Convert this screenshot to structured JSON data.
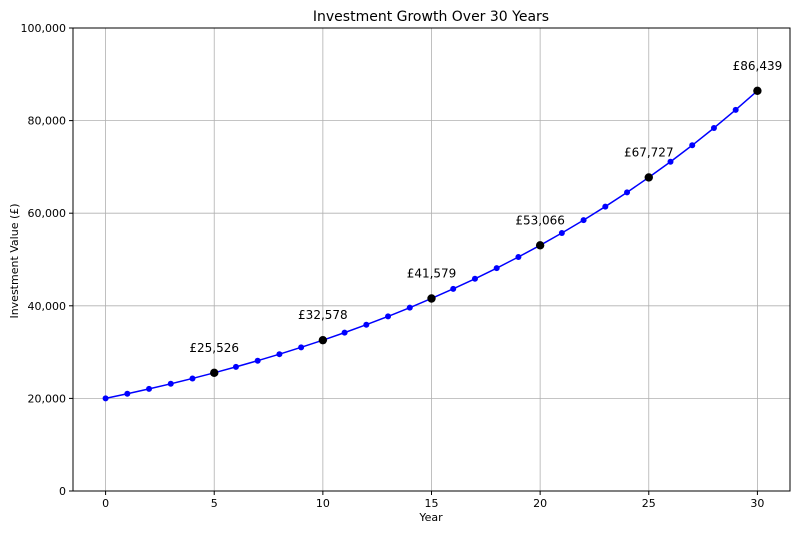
{
  "chart_data": {
    "type": "line",
    "title": "Investment Growth Over 30 Years",
    "xlabel": "Year",
    "ylabel": "Investment Value (£)",
    "xlim": [
      -1.5,
      31.5
    ],
    "ylim": [
      0,
      100000
    ],
    "xticks": [
      0,
      5,
      10,
      15,
      20,
      25,
      30
    ],
    "xtick_labels": [
      "0",
      "5",
      "10",
      "15",
      "20",
      "25",
      "30"
    ],
    "yticks": [
      0,
      20000,
      40000,
      60000,
      80000,
      100000
    ],
    "ytick_labels": [
      "0",
      "20,000",
      "40,000",
      "60,000",
      "80,000",
      "100,000"
    ],
    "grid": true,
    "line_color": "#0000ff",
    "highlight_color": "#000000",
    "x": [
      0,
      1,
      2,
      3,
      4,
      5,
      6,
      7,
      8,
      9,
      10,
      11,
      12,
      13,
      14,
      15,
      16,
      17,
      18,
      19,
      20,
      21,
      22,
      23,
      24,
      25,
      26,
      27,
      28,
      29,
      30
    ],
    "values": [
      20000,
      21000,
      22050,
      23153,
      24310,
      25526,
      26802,
      28142,
      29549,
      31027,
      32578,
      34207,
      35917,
      37713,
      39599,
      41579,
      43658,
      45841,
      48133,
      50539,
      53066,
      55719,
      58505,
      61431,
      64502,
      67727,
      71114,
      74669,
      78403,
      82323,
      86439
    ],
    "highlights": [
      {
        "x": 5,
        "y": 25526,
        "label": "£25,526"
      },
      {
        "x": 10,
        "y": 32578,
        "label": "£32,578"
      },
      {
        "x": 15,
        "y": 41579,
        "label": "£41,579"
      },
      {
        "x": 20,
        "y": 53066,
        "label": "£53,066"
      },
      {
        "x": 25,
        "y": 67727,
        "label": "£67,727"
      },
      {
        "x": 30,
        "y": 86439,
        "label": "£86,439"
      }
    ]
  }
}
